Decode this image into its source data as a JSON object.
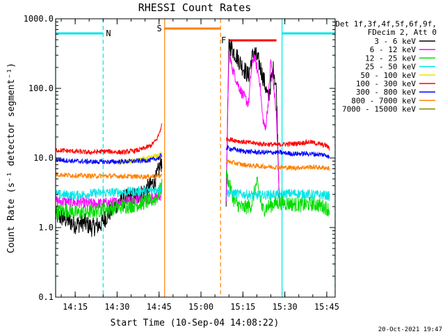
{
  "chart_data": {
    "type": "line",
    "title": "RHESSI Count Rates",
    "xlabel": "Start Time (10-Sep-04 14:08:22)",
    "ylabel": "Count Rate (s⁻¹ detector segment⁻¹)",
    "ylim": [
      0.1,
      1000.0
    ],
    "yscale": "log",
    "xlim": [
      "14:08",
      "15:48"
    ],
    "xticks": [
      "14:15",
      "14:30",
      "14:45",
      "15:00",
      "15:15",
      "15:30",
      "15:45"
    ],
    "yticks": [
      "0.1",
      "1.0",
      "10.0",
      "100.0",
      "1000.0"
    ],
    "grid": false,
    "legend_position": "right",
    "legend_header": [
      "Det 1f,3f,4f,5f,6f,9f,",
      "FDecim 2, Att 0"
    ],
    "timestamp": "20-Oct-2021 19:47",
    "markers": {
      "night": [
        {
          "start": "14:08",
          "end": "14:25",
          "label": "N",
          "color": "#00e5e5"
        },
        {
          "start": "15:29",
          "end": "15:48",
          "label": "",
          "color": "#00e5e5"
        }
      ],
      "saa": {
        "start": "14:47",
        "end": "15:07",
        "label": "S",
        "color": "#ff8000"
      },
      "flare": {
        "start": "15:10",
        "end": "15:27",
        "label": "F",
        "color": "#ff0000"
      }
    },
    "series": [
      {
        "name": "3 - 6 keV",
        "color": "#000000",
        "segments": [
          {
            "x": [
              "14:08",
              "14:12",
              "14:15",
              "14:18",
              "14:21",
              "14:24",
              "14:27",
              "14:30",
              "14:33",
              "14:36",
              "14:39",
              "14:42",
              "14:44",
              "14:45",
              "14:46"
            ],
            "y": [
              1.5,
              1.3,
              1.1,
              1.2,
              1.0,
              1.1,
              1.6,
              2.2,
              2.6,
              2.8,
              3.1,
              4.0,
              5.0,
              7.0,
              9.0
            ]
          },
          {
            "x": [
              "15:09",
              "15:10",
              "15:11",
              "15:13",
              "15:15",
              "15:17",
              "15:18",
              "15:19",
              "15:21",
              "15:23",
              "15:24",
              "15:25",
              "15:26",
              "15:27",
              "15:28"
            ],
            "y": [
              2.5,
              420,
              380,
              280,
              200,
              150,
              250,
              340,
              220,
              110,
              70,
              120,
              200,
              90,
              3.0
            ]
          }
        ]
      },
      {
        "name": "6 - 12 keV",
        "color": "#ff00ff",
        "segments": [
          {
            "x": [
              "14:08",
              "14:15",
              "14:22",
              "14:29",
              "14:36",
              "14:42",
              "14:45",
              "14:46"
            ],
            "y": [
              2.4,
              2.3,
              2.2,
              2.3,
              2.5,
              2.6,
              2.8,
              3.0
            ]
          },
          {
            "x": [
              "15:09",
              "15:10",
              "15:11",
              "15:13",
              "15:15",
              "15:17",
              "15:18",
              "15:19",
              "15:21",
              "15:22",
              "15:23",
              "15:24",
              "15:25",
              "15:26",
              "15:27",
              "15:28"
            ],
            "y": [
              2.5,
              330,
              210,
              120,
              80,
              60,
              180,
              300,
              130,
              40,
              25,
              60,
              260,
              110,
              40,
              2.8
            ]
          }
        ]
      },
      {
        "name": "12 - 25 keV",
        "color": "#00dd00",
        "segments": [
          {
            "x": [
              "14:08",
              "14:12",
              "14:16",
              "14:20",
              "14:24",
              "14:28",
              "14:32",
              "14:36",
              "14:40",
              "14:44",
              "14:45",
              "14:46"
            ],
            "y": [
              1.7,
              1.8,
              1.6,
              1.7,
              1.8,
              1.9,
              2.0,
              2.1,
              2.3,
              2.6,
              3.2,
              4.0
            ]
          },
          {
            "x": [
              "15:09",
              "15:12",
              "15:15",
              "15:18",
              "15:20",
              "15:22",
              "15:24",
              "15:26",
              "15:28",
              "15:32",
              "15:36",
              "15:40",
              "15:44",
              "15:46"
            ],
            "y": [
              6.0,
              2.3,
              1.9,
              2.1,
              4.5,
              1.8,
              2.0,
              2.2,
              2.3,
              2.2,
              2.1,
              2.2,
              2.0,
              1.8
            ]
          }
        ]
      },
      {
        "name": "25 - 50 keV",
        "color": "#00e5e5",
        "segments": [
          {
            "x": [
              "14:08",
              "14:15",
              "14:22",
              "14:29",
              "14:36",
              "14:42",
              "14:45",
              "14:46"
            ],
            "y": [
              3.0,
              2.9,
              3.1,
              3.2,
              3.3,
              3.4,
              3.6,
              3.8
            ]
          },
          {
            "x": [
              "15:09",
              "15:15",
              "15:21",
              "15:27",
              "15:33",
              "15:39",
              "15:45",
              "15:46"
            ],
            "y": [
              3.2,
              3.0,
              2.9,
              3.0,
              3.1,
              3.0,
              2.9,
              2.8
            ]
          }
        ]
      },
      {
        "name": "50 - 100 keV",
        "color": "#e5e500",
        "segments": [
          {
            "x": [
              "14:30",
              "14:36",
              "14:42",
              "14:45",
              "14:46"
            ],
            "y": [
              8.5,
              9.0,
              10.0,
              11.0,
              11.5
            ]
          }
        ]
      },
      {
        "name": "100 - 300 keV",
        "color": "#ff0000",
        "segments": [
          {
            "x": [
              "14:08",
              "14:14",
              "14:20",
              "14:26",
              "14:32",
              "14:38",
              "14:42",
              "14:44",
              "14:45",
              "14:46"
            ],
            "y": [
              13.0,
              12.5,
              12.0,
              12.5,
              12.0,
              13.0,
              15.0,
              18.0,
              22.0,
              30.0
            ]
          },
          {
            "x": [
              "15:09",
              "15:15",
              "15:21",
              "15:27",
              "15:33",
              "15:39",
              "15:45",
              "15:46"
            ],
            "y": [
              19.0,
              17.0,
              16.0,
              15.5,
              16.0,
              17.0,
              15.0,
              13.5
            ]
          }
        ]
      },
      {
        "name": "300 - 800 keV",
        "color": "#0000ff",
        "segments": [
          {
            "x": [
              "14:08",
              "14:15",
              "14:22",
              "14:29",
              "14:36",
              "14:42",
              "14:45",
              "14:46"
            ],
            "y": [
              9.5,
              9.0,
              8.8,
              8.8,
              9.0,
              9.3,
              10.0,
              11.0
            ]
          },
          {
            "x": [
              "15:09",
              "15:15",
              "15:21",
              "15:27",
              "15:33",
              "15:39",
              "15:45",
              "15:46"
            ],
            "y": [
              14.0,
              12.5,
              12.0,
              12.0,
              11.5,
              11.5,
              11.0,
              10.0
            ]
          }
        ]
      },
      {
        "name": "800 - 7000 keV",
        "color": "#ff8000",
        "segments": [
          {
            "x": [
              "14:08",
              "14:15",
              "14:22",
              "14:29",
              "14:36",
              "14:42",
              "14:45",
              "14:46"
            ],
            "y": [
              5.8,
              5.6,
              5.5,
              5.5,
              5.4,
              5.4,
              5.5,
              5.6
            ]
          },
          {
            "x": [
              "15:09",
              "15:15",
              "15:21",
              "15:27",
              "15:33",
              "15:39",
              "15:45",
              "15:46"
            ],
            "y": [
              9.0,
              8.0,
              7.6,
              7.4,
              7.2,
              7.4,
              7.2,
              7.0
            ]
          }
        ]
      },
      {
        "name": "7000 - 15000 keV",
        "color": "#808000",
        "segments": []
      }
    ]
  }
}
